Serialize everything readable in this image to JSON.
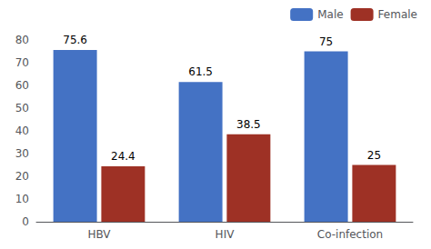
{
  "chart_data": {
    "type": "bar",
    "categories": [
      "HBV",
      "HIV",
      "Co-infection"
    ],
    "series": [
      {
        "name": "Male",
        "color": "#4472C4",
        "values": [
          75.6,
          61.5,
          75
        ]
      },
      {
        "name": "Female",
        "color": "#9E3125",
        "values": [
          24.4,
          38.5,
          25
        ]
      }
    ],
    "ylim": [
      0,
      80
    ],
    "yticks": [
      0,
      10,
      20,
      30,
      40,
      50,
      60,
      70,
      80
    ],
    "grid": false,
    "legend": "upper right",
    "data_labels": true
  }
}
